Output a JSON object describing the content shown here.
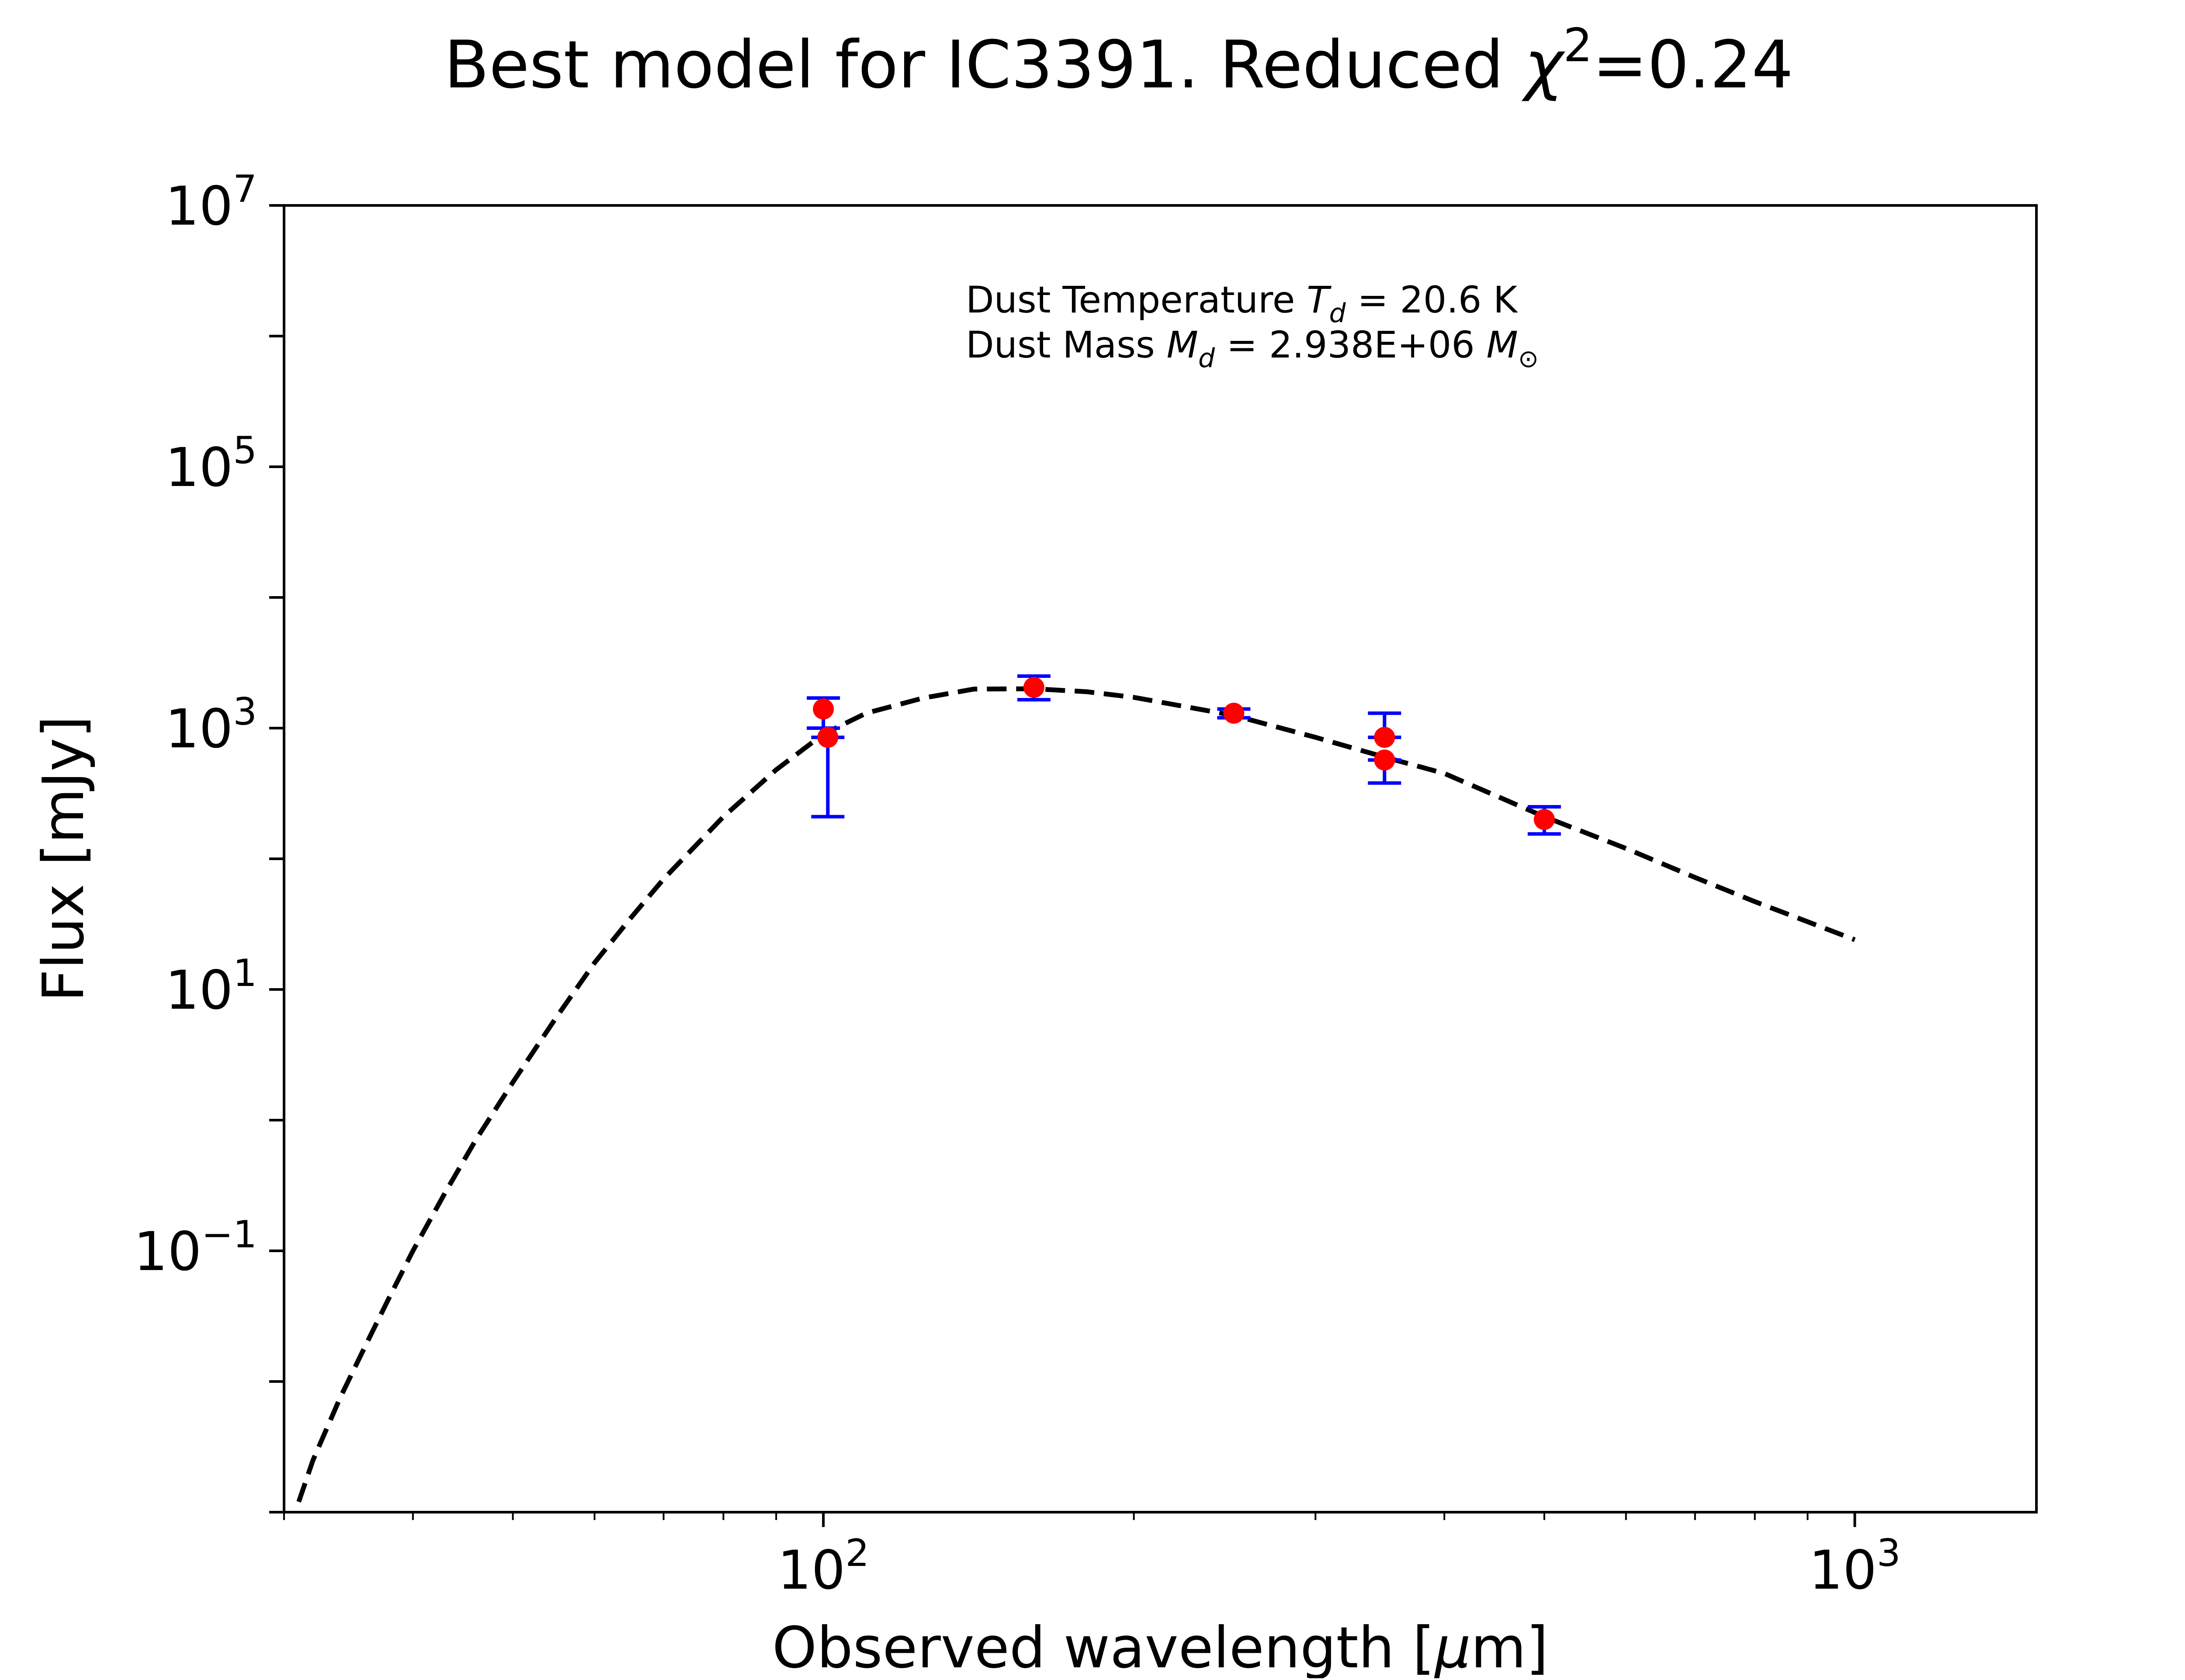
{
  "chart_data": {
    "type": "scatter",
    "title": "Best model for IC3391. Reduced χ²=0.24",
    "title_parts": {
      "main": "Best model for IC3391. Reduced ",
      "symbol": "χ",
      "sup": "2",
      "tail": "=0.24"
    },
    "xlabel": "Observed wavelength [μm]",
    "xlabel_parts": {
      "pre": "Observed wavelength [",
      "symbol": "μ",
      "post": "m]"
    },
    "ylabel": "Flux [mJy]",
    "xscale": "log",
    "yscale": "log",
    "xlim": [
      30,
      1500
    ],
    "ylim": [
      0.001,
      10000000
    ],
    "grid": false,
    "x_ticks": [
      {
        "value": 100,
        "base": "10",
        "exp": "2"
      },
      {
        "value": 1000,
        "base": "10",
        "exp": "3"
      }
    ],
    "y_ticks": [
      {
        "value": 0.1,
        "base": "10",
        "exp": "−1"
      },
      {
        "value": 10,
        "base": "10",
        "exp": "1"
      },
      {
        "value": 1000,
        "base": "10",
        "exp": "3"
      },
      {
        "value": 100000,
        "base": "10",
        "exp": "5"
      },
      {
        "value": 10000000,
        "base": "10",
        "exp": "7"
      }
    ],
    "annotation": {
      "line1": {
        "pre": "Dust Temperature ",
        "sym": "T",
        "sub": "d",
        "post": " = 20.6 K"
      },
      "line2": {
        "pre": "Dust Mass ",
        "sym": "M",
        "sub": "d",
        "mid": " = 2.938E+06 ",
        "sym2": "M",
        "sub2": "⊙"
      }
    },
    "model": {
      "name": "",
      "style": "dashed",
      "color": "#000000",
      "x": [
        31,
        32,
        34,
        36,
        38,
        40,
        43,
        46,
        50,
        55,
        60,
        65,
        70,
        80,
        90,
        100,
        110,
        125,
        140,
        160,
        180,
        200,
        250,
        300,
        350,
        400,
        500,
        600,
        700,
        800,
        900,
        1000
      ],
      "y": [
        0.0012,
        0.0025,
        0.0075,
        0.019,
        0.045,
        0.1,
        0.28,
        0.7,
        1.95,
        6.0,
        16,
        35,
        70,
        210,
        480,
        900,
        1300,
        1700,
        1990,
        2000,
        1900,
        1720,
        1250,
        850,
        600,
        450,
        210,
        120,
        72,
        47,
        33,
        24
      ]
    },
    "observations": {
      "name": "",
      "marker_color": "#ff0000",
      "errorbar_color": "#0000ff",
      "points": [
        {
          "x": 100,
          "y": 1400,
          "yerr_low": 1000,
          "yerr_high": 1700
        },
        {
          "x": 101,
          "y": 850,
          "yerr_low": 210,
          "yerr_high": 850
        },
        {
          "x": 160,
          "y": 2050,
          "yerr_low": 1650,
          "yerr_high": 2500
        },
        {
          "x": 250,
          "y": 1300,
          "yerr_low": 1200,
          "yerr_high": 1400
        },
        {
          "x": 350,
          "y": 850,
          "yerr_low": 850,
          "yerr_high": 1300
        },
        {
          "x": 350,
          "y": 570,
          "yerr_low": 380,
          "yerr_high": 570
        },
        {
          "x": 500,
          "y": 200,
          "yerr_low": 155,
          "yerr_high": 250
        }
      ]
    }
  }
}
